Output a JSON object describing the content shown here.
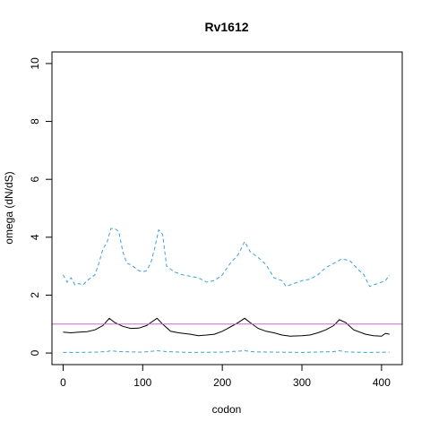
{
  "chart_data": {
    "type": "line",
    "title": "Rv1612",
    "xlabel": "codon",
    "ylabel": "omega (dN/dS)",
    "xlim": [
      -14,
      426
    ],
    "ylim": [
      -0.4,
      10.4
    ],
    "xticks": [
      0,
      100,
      200,
      300,
      400
    ],
    "yticks": [
      0,
      2,
      4,
      6,
      8,
      10
    ],
    "reference_line": {
      "y": 1,
      "color": "#cc66cc"
    },
    "colors": {
      "estimate": "#000000",
      "ci": "#3aa0dc"
    },
    "series": [
      {
        "role": "upper-ci",
        "style": "dashed",
        "x": [
          0,
          5,
          10,
          15,
          20,
          25,
          30,
          35,
          40,
          45,
          50,
          55,
          60,
          65,
          70,
          75,
          80,
          85,
          90,
          95,
          100,
          105,
          110,
          115,
          120,
          125,
          130,
          135,
          140,
          150,
          160,
          170,
          180,
          190,
          200,
          210,
          220,
          228,
          235,
          245,
          255,
          265,
          275,
          280,
          290,
          300,
          310,
          320,
          330,
          340,
          350,
          360,
          370,
          378,
          385,
          395,
          405,
          410
        ],
        "y": [
          2.7,
          2.45,
          2.6,
          2.35,
          2.4,
          2.35,
          2.5,
          2.6,
          2.7,
          3.1,
          3.6,
          3.8,
          4.3,
          4.3,
          4.2,
          3.5,
          3.1,
          3.05,
          2.95,
          2.85,
          2.8,
          2.85,
          3.1,
          3.6,
          4.25,
          4.1,
          3.0,
          2.9,
          2.8,
          2.7,
          2.65,
          2.6,
          2.45,
          2.5,
          2.7,
          3.1,
          3.4,
          3.85,
          3.5,
          3.3,
          3.05,
          2.6,
          2.5,
          2.3,
          2.4,
          2.5,
          2.55,
          2.7,
          2.95,
          3.1,
          3.25,
          3.2,
          2.9,
          2.7,
          2.3,
          2.4,
          2.5,
          2.7
        ]
      },
      {
        "role": "estimate",
        "style": "solid",
        "x": [
          0,
          10,
          20,
          30,
          40,
          50,
          58,
          65,
          75,
          85,
          95,
          105,
          110,
          118,
          125,
          135,
          145,
          160,
          170,
          180,
          190,
          200,
          210,
          220,
          228,
          235,
          245,
          255,
          265,
          275,
          285,
          300,
          310,
          320,
          330,
          340,
          347,
          355,
          365,
          380,
          390,
          400,
          405,
          410
        ],
        "y": [
          0.72,
          0.7,
          0.72,
          0.74,
          0.8,
          0.95,
          1.2,
          1.05,
          0.92,
          0.85,
          0.86,
          0.95,
          1.05,
          1.2,
          1.0,
          0.75,
          0.7,
          0.65,
          0.6,
          0.62,
          0.65,
          0.75,
          0.9,
          1.05,
          1.2,
          1.05,
          0.85,
          0.75,
          0.7,
          0.62,
          0.58,
          0.6,
          0.62,
          0.7,
          0.8,
          0.95,
          1.15,
          1.05,
          0.8,
          0.65,
          0.6,
          0.58,
          0.68,
          0.65
        ]
      },
      {
        "role": "lower-ci",
        "style": "dashed",
        "x": [
          0,
          20,
          40,
          55,
          60,
          70,
          100,
          118,
          130,
          160,
          200,
          228,
          240,
          300,
          340,
          347,
          355,
          380,
          410
        ],
        "y": [
          0.02,
          0.02,
          0.03,
          0.05,
          0.08,
          0.05,
          0.03,
          0.08,
          0.05,
          0.02,
          0.03,
          0.08,
          0.04,
          0.02,
          0.05,
          0.08,
          0.04,
          0.02,
          0.03
        ]
      }
    ]
  }
}
